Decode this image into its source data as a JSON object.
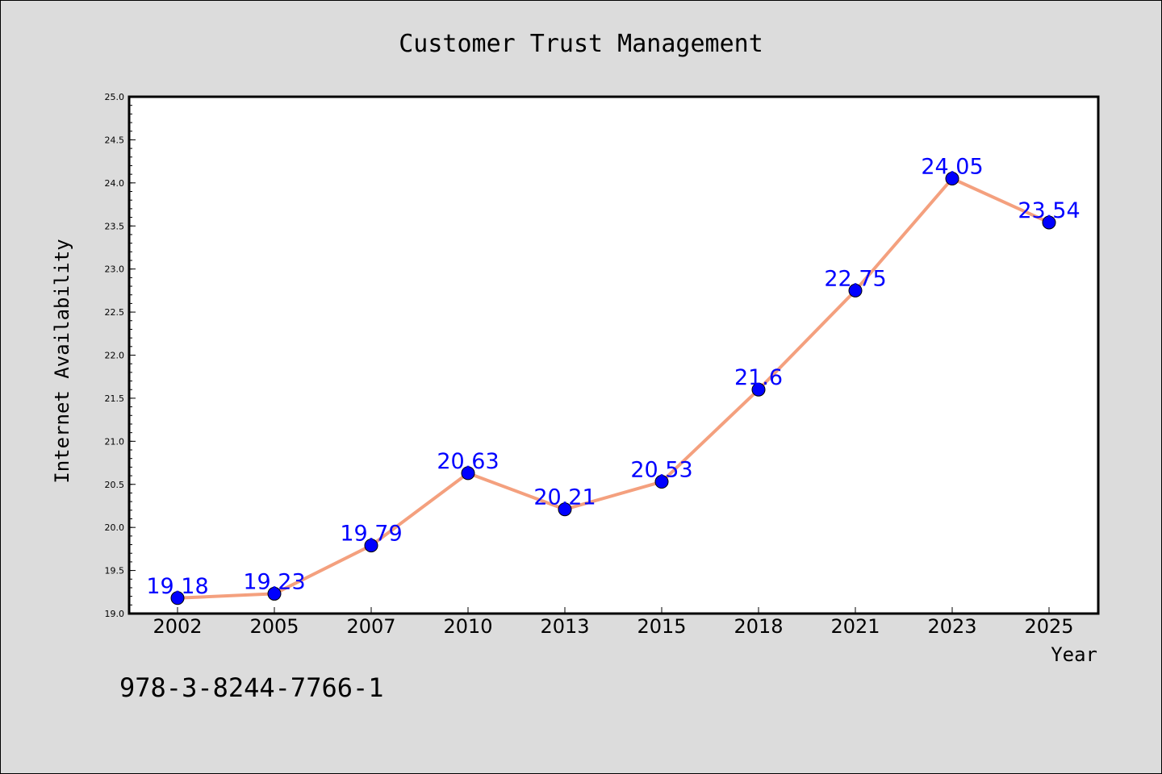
{
  "chart_data": {
    "type": "line",
    "title": "Customer Trust Management",
    "xlabel": "Year",
    "ylabel": "Internet Availability",
    "categories": [
      "2002",
      "2005",
      "2007",
      "2010",
      "2013",
      "2015",
      "2018",
      "2021",
      "2023",
      "2025"
    ],
    "values": [
      19.18,
      19.23,
      19.79,
      20.63,
      20.21,
      20.53,
      21.6,
      22.75,
      24.05,
      23.54
    ],
    "data_labels": [
      "19.18",
      "19.23",
      "19.79",
      "20.63",
      "20.21",
      "20.53",
      "21.6",
      "22.75",
      "24.05",
      "23.54"
    ],
    "ylim": [
      19.0,
      25.0
    ],
    "yticks": [
      "19.0",
      "19.5",
      "20.0",
      "20.5",
      "21.0",
      "21.5",
      "22.0",
      "22.5",
      "23.0",
      "23.5",
      "24.0",
      "24.5",
      "25.0"
    ],
    "grid": false,
    "line_color": "#f4a07e",
    "marker_color": "#0000ff",
    "label_color": "#0000ff"
  },
  "footnote": "978-3-8244-7766-1"
}
